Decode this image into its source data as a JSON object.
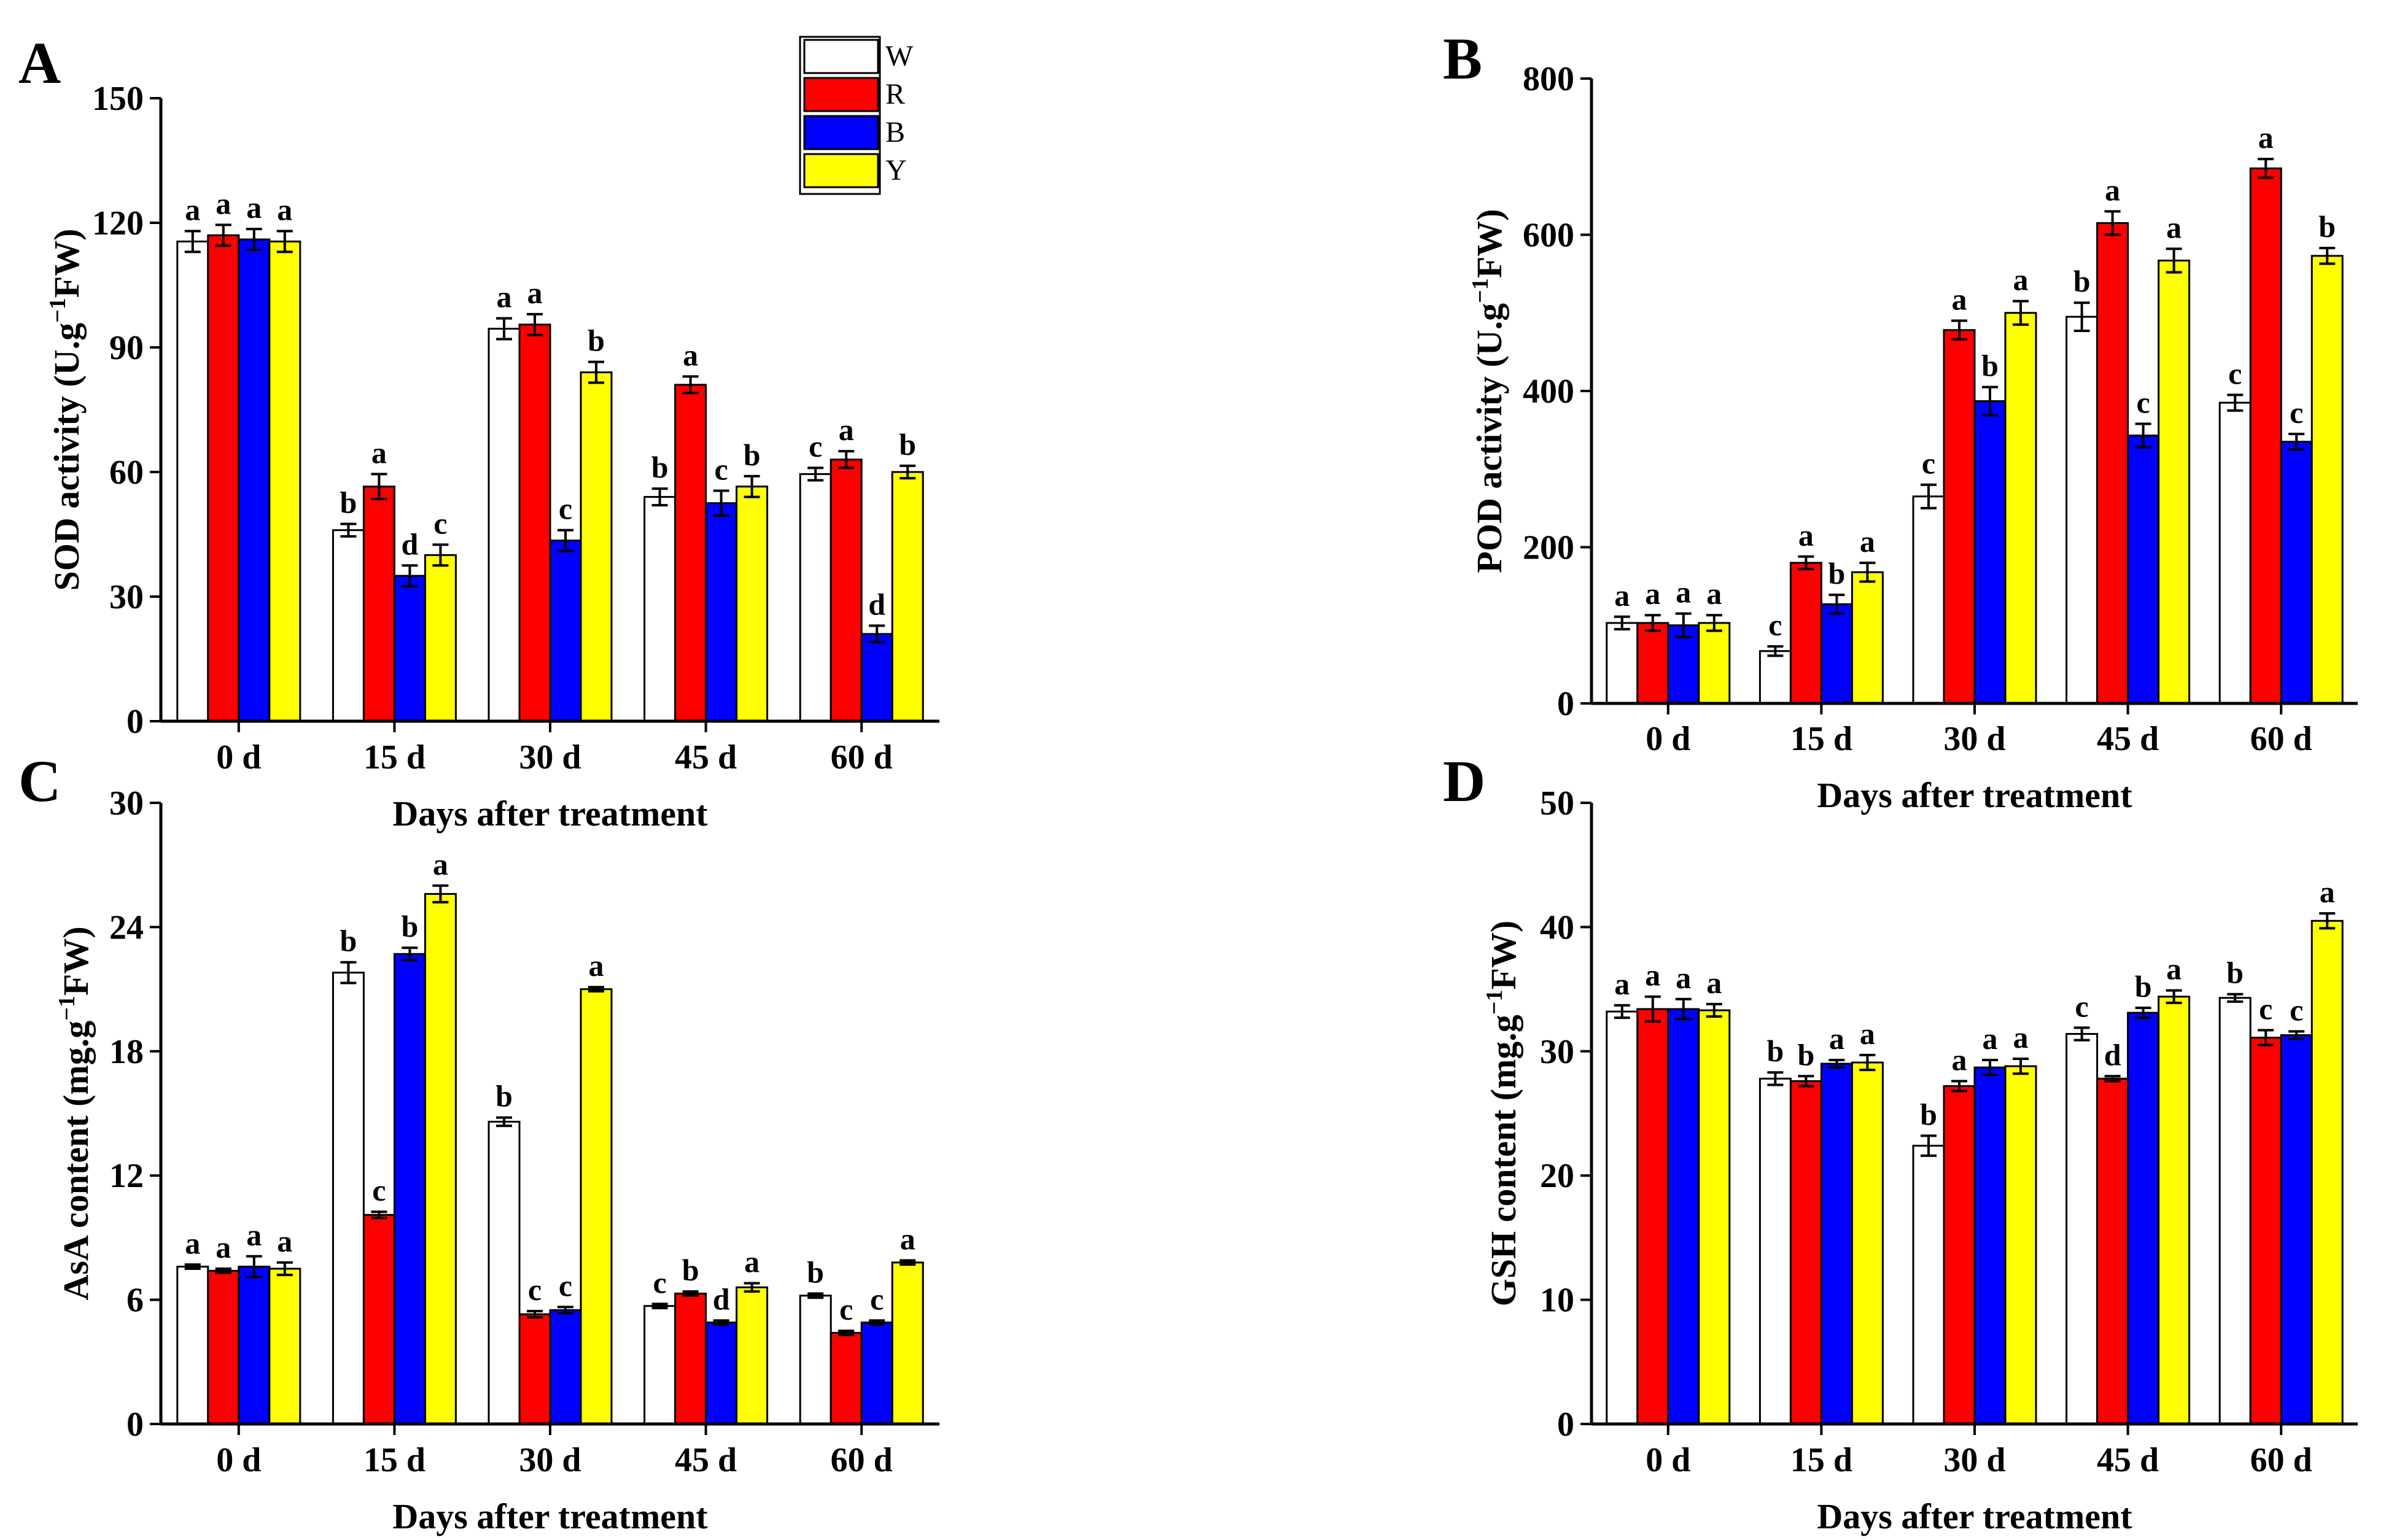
{
  "legend": {
    "entries": [
      {
        "key": "W",
        "label": "W",
        "color": "#ffffff"
      },
      {
        "key": "R",
        "label": "R",
        "color": "#ff0000"
      },
      {
        "key": "B",
        "label": "B",
        "color": "#0000ff"
      },
      {
        "key": "Y",
        "label": "Y",
        "color": "#ffff00"
      }
    ]
  },
  "chart_data": [
    {
      "type": "bar",
      "panel": "A",
      "ylabel_main": "SOD activity (U.g",
      "ylabel_sup": "−1",
      "ylabel_tail": "FW)",
      "xlabel": "Days after treatment",
      "categories": [
        "0 d",
        "15 d",
        "30 d",
        "45 d",
        "60 d"
      ],
      "ylim": [
        0,
        150
      ],
      "yticks": [
        0,
        30,
        60,
        90,
        120,
        150
      ],
      "series": [
        {
          "name": "W",
          "values": [
            115.5,
            46,
            94.5,
            54,
            59.5
          ],
          "errors": [
            2.5,
            1.5,
            2.5,
            2,
            1.5
          ],
          "letters": [
            "a",
            "b",
            "a",
            "b",
            "c"
          ]
        },
        {
          "name": "R",
          "values": [
            117,
            56.5,
            95.5,
            81,
            63
          ],
          "errors": [
            2.5,
            3,
            2.5,
            2,
            2
          ],
          "letters": [
            "a",
            "a",
            "a",
            "a",
            "a"
          ]
        },
        {
          "name": "B",
          "values": [
            116,
            35,
            43.5,
            52.5,
            21
          ],
          "errors": [
            2.5,
            2.5,
            2.5,
            3,
            2
          ],
          "letters": [
            "a",
            "d",
            "c",
            "c",
            "d"
          ]
        },
        {
          "name": "Y",
          "values": [
            115.5,
            40,
            84,
            56.5,
            60
          ],
          "errors": [
            2.5,
            2.5,
            2.5,
            2.5,
            1.5
          ],
          "letters": [
            "a",
            "c",
            "b",
            "b",
            "b"
          ]
        }
      ]
    },
    {
      "type": "bar",
      "panel": "B",
      "ylabel_main": "POD activity (U.g",
      "ylabel_sup": "−1",
      "ylabel_tail": "FW)",
      "xlabel": "Days after treatment",
      "categories": [
        "0 d",
        "15 d",
        "30 d",
        "45 d",
        "60 d"
      ],
      "ylim": [
        0,
        800
      ],
      "yticks": [
        0,
        200,
        400,
        600,
        800
      ],
      "series": [
        {
          "name": "W",
          "values": [
            103,
            67,
            265,
            495,
            385
          ],
          "errors": [
            8,
            6,
            15,
            18,
            10
          ],
          "letters": [
            "a",
            "c",
            "c",
            "b",
            "c"
          ]
        },
        {
          "name": "R",
          "values": [
            103,
            180,
            478,
            615,
            685
          ],
          "errors": [
            10,
            8,
            12,
            15,
            12
          ],
          "letters": [
            "a",
            "a",
            "a",
            "a",
            "a"
          ]
        },
        {
          "name": "B",
          "values": [
            100,
            127,
            387,
            343,
            335
          ],
          "errors": [
            15,
            12,
            18,
            15,
            10
          ],
          "letters": [
            "a",
            "b",
            "b",
            "c",
            "c"
          ]
        },
        {
          "name": "Y",
          "values": [
            103,
            168,
            500,
            567,
            573
          ],
          "errors": [
            10,
            12,
            15,
            15,
            10
          ],
          "letters": [
            "a",
            "a",
            "a",
            "a",
            "b"
          ]
        }
      ]
    },
    {
      "type": "bar",
      "panel": "C",
      "ylabel_main": "AsA content (mg.g",
      "ylabel_sup": "−1",
      "ylabel_tail": "FW)",
      "xlabel": "Days after treatment",
      "categories": [
        "0 d",
        "15 d",
        "30 d",
        "45 d",
        "60 d"
      ],
      "ylim": [
        0,
        30
      ],
      "yticks": [
        0,
        6,
        12,
        18,
        24,
        30
      ],
      "series": [
        {
          "name": "W",
          "values": [
            7.6,
            21.8,
            14.6,
            5.7,
            6.2
          ],
          "errors": [
            0.1,
            0.5,
            0.2,
            0.1,
            0.1
          ],
          "letters": [
            "a",
            "b",
            "b",
            "c",
            "b"
          ]
        },
        {
          "name": "R",
          "values": [
            7.4,
            10.1,
            5.3,
            6.3,
            4.4
          ],
          "errors": [
            0.1,
            0.15,
            0.15,
            0.1,
            0.1
          ],
          "letters": [
            "a",
            "c",
            "c",
            "b",
            "c"
          ]
        },
        {
          "name": "B",
          "values": [
            7.6,
            22.7,
            5.5,
            4.9,
            4.9
          ],
          "errors": [
            0.5,
            0.3,
            0.15,
            0.1,
            0.1
          ],
          "letters": [
            "a",
            "b",
            "c",
            "d",
            "c"
          ]
        },
        {
          "name": "Y",
          "values": [
            7.5,
            25.6,
            21,
            6.6,
            7.8
          ],
          "errors": [
            0.3,
            0.4,
            0.1,
            0.2,
            0.1
          ],
          "letters": [
            "a",
            "a",
            "a",
            "a",
            "a"
          ]
        }
      ]
    },
    {
      "type": "bar",
      "panel": "D",
      "ylabel_main": "GSH content (mg.g",
      "ylabel_sup": "−1",
      "ylabel_tail": "FW)",
      "xlabel": "Days after treatment",
      "categories": [
        "0 d",
        "15 d",
        "30 d",
        "45 d",
        "60 d"
      ],
      "ylim": [
        0,
        50
      ],
      "yticks": [
        0,
        10,
        20,
        30,
        40,
        50
      ],
      "series": [
        {
          "name": "W",
          "values": [
            33.2,
            27.8,
            22.4,
            31.4,
            34.3
          ],
          "errors": [
            0.5,
            0.5,
            0.8,
            0.5,
            0.3
          ],
          "letters": [
            "a",
            "b",
            "b",
            "c",
            "b"
          ]
        },
        {
          "name": "R",
          "values": [
            33.4,
            27.6,
            27.2,
            27.8,
            31.1
          ],
          "errors": [
            1,
            0.4,
            0.4,
            0.2,
            0.6
          ],
          "letters": [
            "a",
            "b",
            "a",
            "d",
            "c"
          ]
        },
        {
          "name": "B",
          "values": [
            33.4,
            29,
            28.7,
            33.1,
            31.3
          ],
          "errors": [
            0.8,
            0.3,
            0.6,
            0.4,
            0.3
          ],
          "letters": [
            "a",
            "a",
            "a",
            "b",
            "c"
          ]
        },
        {
          "name": "Y",
          "values": [
            33.3,
            29.1,
            28.8,
            34.4,
            40.5
          ],
          "errors": [
            0.5,
            0.6,
            0.6,
            0.5,
            0.6
          ],
          "letters": [
            "a",
            "a",
            "a",
            "a",
            "a"
          ]
        }
      ]
    }
  ]
}
